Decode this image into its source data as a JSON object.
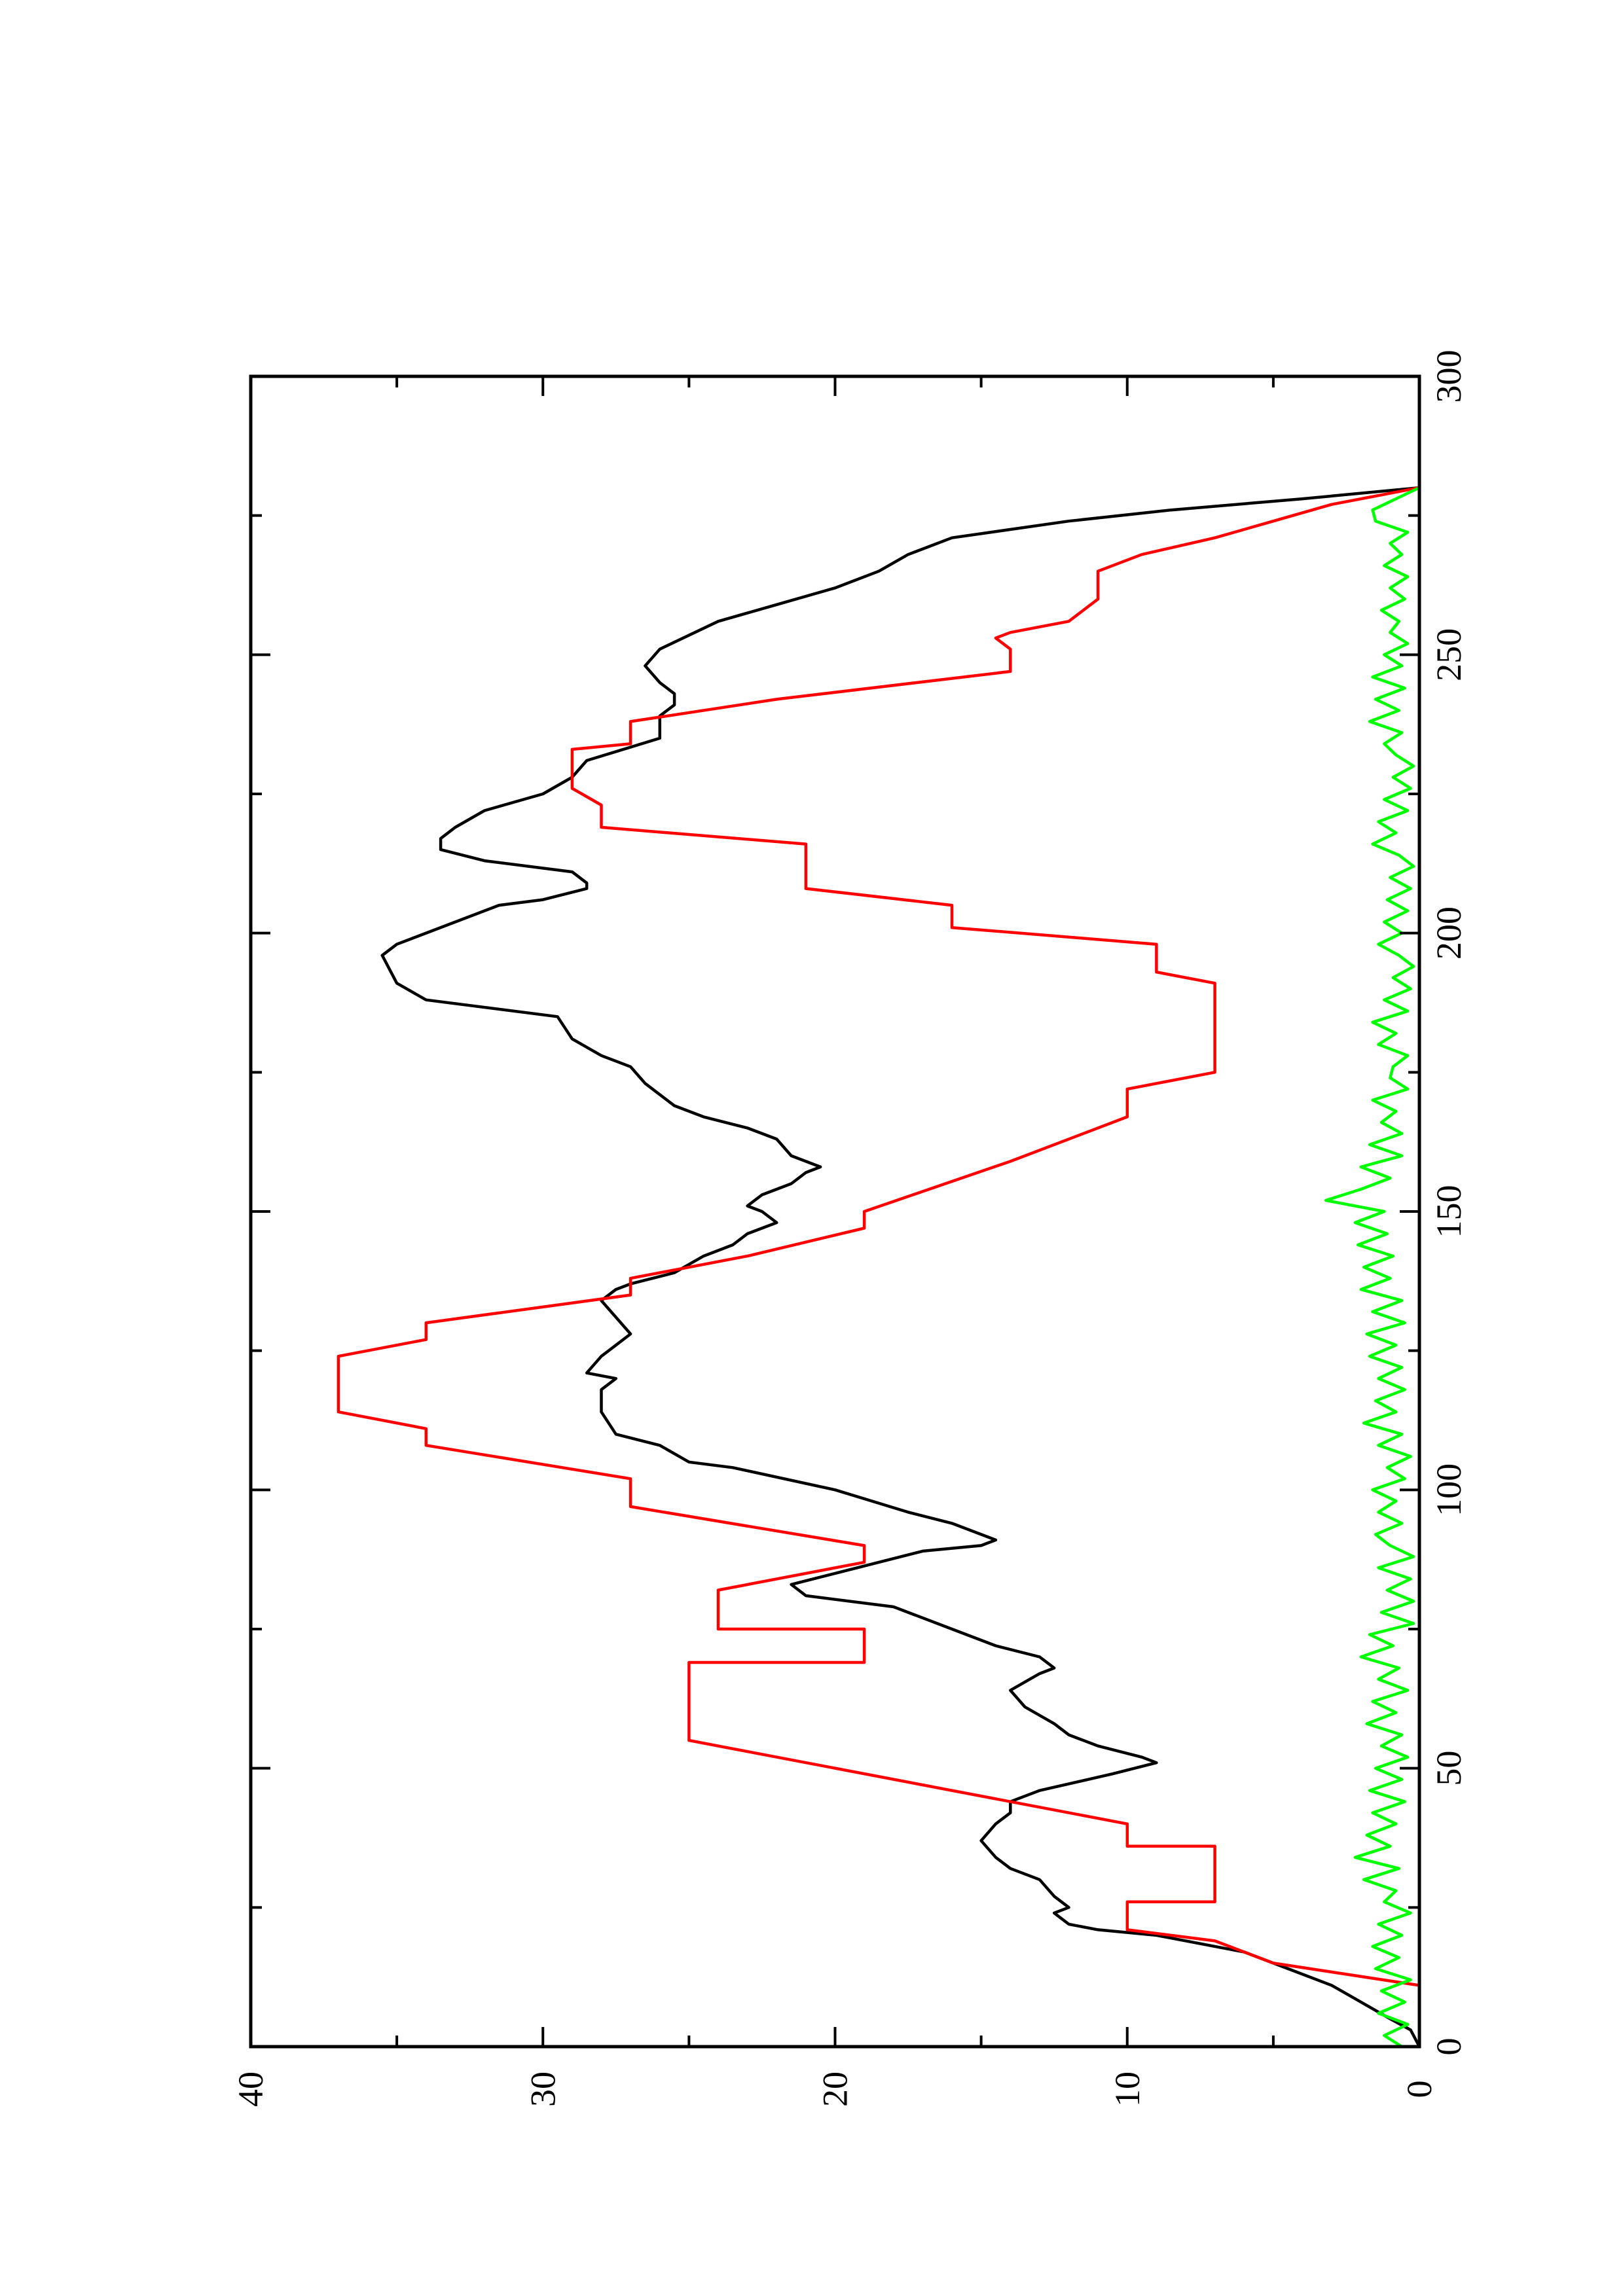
{
  "chart_data": {
    "type": "line",
    "title": "",
    "xlabel": "",
    "ylabel": "",
    "xlim": [
      0,
      300
    ],
    "ylim": [
      0,
      40
    ],
    "x_ticks": [
      0,
      50,
      100,
      150,
      200,
      250,
      300
    ],
    "x_tick_labels": [
      "0",
      "50",
      "100",
      "150",
      "200",
      "250",
      "300"
    ],
    "x_minor_ticks": [
      25,
      75,
      125,
      175,
      225,
      275
    ],
    "y_ticks": [
      0,
      10,
      20,
      30,
      40
    ],
    "y_tick_labels": [
      "0",
      "10",
      "20",
      "30",
      "40"
    ],
    "y_minor_ticks": [
      5,
      15,
      25,
      35
    ],
    "orientation": "rotated 90 degrees counter-clockwise (x axis along right edge, y axis along bottom)",
    "grid": false,
    "legend": "none",
    "series": [
      {
        "color": "#000000",
        "points": [
          [
            0,
            0
          ],
          [
            3,
            0.3
          ],
          [
            5,
            1
          ],
          [
            8,
            2
          ],
          [
            11,
            3
          ],
          [
            14,
            4.5
          ],
          [
            17,
            6
          ],
          [
            20,
            9
          ],
          [
            21,
            11
          ],
          [
            22,
            12
          ],
          [
            24,
            12.5
          ],
          [
            25,
            12
          ],
          [
            27,
            12.5
          ],
          [
            30,
            13
          ],
          [
            32,
            14
          ],
          [
            34,
            14.5
          ],
          [
            37,
            15
          ],
          [
            40,
            14.5
          ],
          [
            42,
            14
          ],
          [
            44,
            14
          ],
          [
            46,
            13
          ],
          [
            49,
            10.5
          ],
          [
            51,
            9
          ],
          [
            52,
            9.5
          ],
          [
            54,
            11
          ],
          [
            56,
            12
          ],
          [
            58,
            12.5
          ],
          [
            61,
            13.5
          ],
          [
            64,
            14
          ],
          [
            67,
            13
          ],
          [
            68,
            12.5
          ],
          [
            70,
            13
          ],
          [
            72,
            14.5
          ],
          [
            75,
            16
          ],
          [
            79,
            18
          ],
          [
            81,
            21
          ],
          [
            83,
            21.5
          ],
          [
            85,
            20
          ],
          [
            89,
            17
          ],
          [
            90,
            15
          ],
          [
            91,
            14.5
          ],
          [
            92,
            15
          ],
          [
            94,
            16
          ],
          [
            96,
            17.5
          ],
          [
            100,
            20
          ],
          [
            104,
            23.5
          ],
          [
            105,
            25
          ],
          [
            108,
            26
          ],
          [
            110,
            27.5
          ],
          [
            114,
            28
          ],
          [
            118,
            28
          ],
          [
            120,
            27.5
          ],
          [
            121,
            28.5
          ],
          [
            124,
            28
          ],
          [
            126,
            27.5
          ],
          [
            128,
            27
          ],
          [
            131,
            27.5
          ],
          [
            134,
            28
          ],
          [
            136,
            27.5
          ],
          [
            137,
            27
          ],
          [
            139,
            25.5
          ],
          [
            142,
            24.5
          ],
          [
            144,
            23.5
          ],
          [
            146,
            23
          ],
          [
            147,
            22.5
          ],
          [
            148,
            22
          ],
          [
            150,
            22.5
          ],
          [
            151,
            23
          ],
          [
            153,
            22.5
          ],
          [
            155,
            21.5
          ],
          [
            157,
            21
          ],
          [
            158,
            20.5
          ],
          [
            159,
            21
          ],
          [
            160,
            21.5
          ],
          [
            163,
            22
          ],
          [
            165,
            23
          ],
          [
            167,
            24.5
          ],
          [
            169,
            25.5
          ],
          [
            171,
            26
          ],
          [
            173,
            26.5
          ],
          [
            176,
            27
          ],
          [
            178,
            28
          ],
          [
            181,
            29
          ],
          [
            185,
            29.5
          ],
          [
            188,
            34
          ],
          [
            191,
            35
          ],
          [
            196,
            35.5
          ],
          [
            198,
            35
          ],
          [
            205,
            31.5
          ],
          [
            206,
            30
          ],
          [
            208,
            28.5
          ],
          [
            209,
            28.5
          ],
          [
            211,
            29
          ],
          [
            213,
            32
          ],
          [
            215,
            33.5
          ],
          [
            217,
            33.5
          ],
          [
            219,
            33
          ],
          [
            222,
            32
          ],
          [
            225,
            30
          ],
          [
            228,
            29
          ],
          [
            231,
            28.5
          ],
          [
            235,
            26
          ],
          [
            239,
            26
          ],
          [
            241,
            25.5
          ],
          [
            243,
            25.5
          ],
          [
            245,
            26
          ],
          [
            248,
            26.5
          ],
          [
            251,
            26
          ],
          [
            256,
            24
          ],
          [
            259,
            22
          ],
          [
            262,
            20
          ],
          [
            265,
            18.5
          ],
          [
            268,
            17.5
          ],
          [
            271,
            16
          ],
          [
            274,
            12
          ],
          [
            276,
            8.5
          ],
          [
            278,
            4
          ],
          [
            280,
            0
          ]
        ]
      },
      {
        "color": "#ff0000",
        "points": [
          [
            0,
            0
          ],
          [
            11,
            0
          ],
          [
            15,
            5
          ],
          [
            19,
            7
          ],
          [
            21,
            10
          ],
          [
            26,
            10
          ],
          [
            26,
            7
          ],
          [
            36,
            7
          ],
          [
            36,
            10
          ],
          [
            40,
            10
          ],
          [
            55,
            25
          ],
          [
            69,
            25
          ],
          [
            69,
            19
          ],
          [
            75,
            19
          ],
          [
            75,
            24
          ],
          [
            82,
            24
          ],
          [
            87,
            19
          ],
          [
            90,
            19
          ],
          [
            97,
            27
          ],
          [
            102,
            27
          ],
          [
            108,
            34
          ],
          [
            111,
            34
          ],
          [
            114,
            37
          ],
          [
            124,
            37
          ],
          [
            127,
            34
          ],
          [
            130,
            34
          ],
          [
            135,
            27
          ],
          [
            138,
            27
          ],
          [
            142,
            23
          ],
          [
            147,
            19
          ],
          [
            150,
            19
          ],
          [
            159,
            14
          ],
          [
            167,
            10
          ],
          [
            172,
            10
          ],
          [
            175,
            7
          ],
          [
            191,
            7
          ],
          [
            193,
            9
          ],
          [
            198,
            9
          ],
          [
            201,
            16
          ],
          [
            205,
            16
          ],
          [
            208,
            21
          ],
          [
            216,
            21
          ],
          [
            219,
            28
          ],
          [
            223,
            28
          ],
          [
            226,
            29
          ],
          [
            233,
            29
          ],
          [
            234,
            27
          ],
          [
            238,
            27
          ],
          [
            242,
            22
          ],
          [
            247,
            14
          ],
          [
            251,
            14
          ],
          [
            253,
            14.5
          ],
          [
            254,
            14
          ],
          [
            256,
            12
          ],
          [
            260,
            11
          ],
          [
            265,
            11
          ],
          [
            268,
            9.5
          ],
          [
            271,
            7
          ],
          [
            274,
            5
          ],
          [
            277,
            3
          ],
          [
            280,
            0
          ]
        ]
      },
      {
        "color": "#00ff00",
        "points": [
          [
            0,
            0.6
          ],
          [
            2,
            1.2
          ],
          [
            4,
            0.4
          ],
          [
            6,
            1.4
          ],
          [
            8,
            0.5
          ],
          [
            10,
            1.3
          ],
          [
            12,
            0.3
          ],
          [
            14,
            1.5
          ],
          [
            16,
            0.7
          ],
          [
            18,
            1.6
          ],
          [
            20,
            0.6
          ],
          [
            22,
            1.4
          ],
          [
            24,
            0.3
          ],
          [
            26,
            1.2
          ],
          [
            28,
            0.8
          ],
          [
            30,
            1.9
          ],
          [
            32,
            0.7
          ],
          [
            34,
            2.2
          ],
          [
            36,
            1.0
          ],
          [
            38,
            1.8
          ],
          [
            40,
            0.8
          ],
          [
            42,
            1.6
          ],
          [
            44,
            0.5
          ],
          [
            46,
            1.7
          ],
          [
            48,
            0.6
          ],
          [
            50,
            1.5
          ],
          [
            52,
            0.4
          ],
          [
            54,
            1.3
          ],
          [
            56,
            0.6
          ],
          [
            58,
            1.8
          ],
          [
            60,
            0.8
          ],
          [
            62,
            1.6
          ],
          [
            64,
            0.4
          ],
          [
            66,
            1.4
          ],
          [
            68,
            0.7
          ],
          [
            70,
            2.0
          ],
          [
            72,
            0.9
          ],
          [
            74,
            1.7
          ],
          [
            76,
            0.2
          ],
          [
            78,
            1.3
          ],
          [
            80,
            0.2
          ],
          [
            82,
            1.1
          ],
          [
            84,
            0.3
          ],
          [
            86,
            1.4
          ],
          [
            88,
            0.2
          ],
          [
            90,
            1.0
          ],
          [
            92,
            1.5
          ],
          [
            94,
            0.6
          ],
          [
            96,
            1.4
          ],
          [
            98,
            0.8
          ],
          [
            100,
            1.6
          ],
          [
            102,
            0.5
          ],
          [
            104,
            1.1
          ],
          [
            106,
            0.3
          ],
          [
            108,
            1.4
          ],
          [
            110,
            0.6
          ],
          [
            112,
            1.9
          ],
          [
            114,
            0.8
          ],
          [
            116,
            1.5
          ],
          [
            118,
            0.5
          ],
          [
            120,
            1.4
          ],
          [
            122,
            0.6
          ],
          [
            124,
            1.7
          ],
          [
            126,
            0.8
          ],
          [
            128,
            1.8
          ],
          [
            130,
            0.5
          ],
          [
            132,
            1.6
          ],
          [
            134,
            0.6
          ],
          [
            136,
            2.0
          ],
          [
            138,
            1.0
          ],
          [
            140,
            1.9
          ],
          [
            142,
            0.9
          ],
          [
            144,
            2.1
          ],
          [
            146,
            1.1
          ],
          [
            148,
            2.2
          ],
          [
            150,
            1.2
          ],
          [
            152,
            3.2
          ],
          [
            154,
            2.0
          ],
          [
            156,
            1.0
          ],
          [
            158,
            2.0
          ],
          [
            160,
            0.6
          ],
          [
            162,
            1.7
          ],
          [
            164,
            0.6
          ],
          [
            166,
            1.3
          ],
          [
            168,
            0.8
          ],
          [
            170,
            1.6
          ],
          [
            172,
            0.4
          ],
          [
            174,
            1.0
          ],
          [
            176,
            0.9
          ],
          [
            178,
            0.4
          ],
          [
            180,
            1.4
          ],
          [
            182,
            0.8
          ],
          [
            184,
            1.6
          ],
          [
            186,
            0.4
          ],
          [
            188,
            1.2
          ],
          [
            190,
            0.3
          ],
          [
            192,
            0.9
          ],
          [
            194,
            0.2
          ],
          [
            196,
            0.7
          ],
          [
            198,
            1.4
          ],
          [
            200,
            0.6
          ],
          [
            202,
            1.2
          ],
          [
            204,
            0.4
          ],
          [
            206,
            1.1
          ],
          [
            208,
            0.3
          ],
          [
            210,
            1.0
          ],
          [
            212,
            0.2
          ],
          [
            214,
            0.7
          ],
          [
            216,
            1.6
          ],
          [
            218,
            0.8
          ],
          [
            220,
            1.4
          ],
          [
            222,
            0.4
          ],
          [
            224,
            1.2
          ],
          [
            226,
            0.3
          ],
          [
            228,
            0.9
          ],
          [
            230,
            0.2
          ],
          [
            232,
            0.8
          ],
          [
            234,
            1.2
          ],
          [
            236,
            0.6
          ],
          [
            238,
            1.7
          ],
          [
            240,
            0.7
          ],
          [
            242,
            1.5
          ],
          [
            244,
            0.5
          ],
          [
            246,
            1.6
          ],
          [
            248,
            0.6
          ],
          [
            250,
            1.2
          ],
          [
            252,
            0.4
          ],
          [
            254,
            1.0
          ],
          [
            256,
            0.7
          ],
          [
            258,
            1.3
          ],
          [
            260,
            0.5
          ],
          [
            262,
            1.0
          ],
          [
            264,
            0.4
          ],
          [
            266,
            1.2
          ],
          [
            268,
            0.6
          ],
          [
            270,
            1.0
          ],
          [
            272,
            0.4
          ],
          [
            274,
            1.5
          ],
          [
            276,
            1.6
          ],
          [
            278,
            0.8
          ],
          [
            280,
            0.0
          ]
        ]
      }
    ]
  }
}
